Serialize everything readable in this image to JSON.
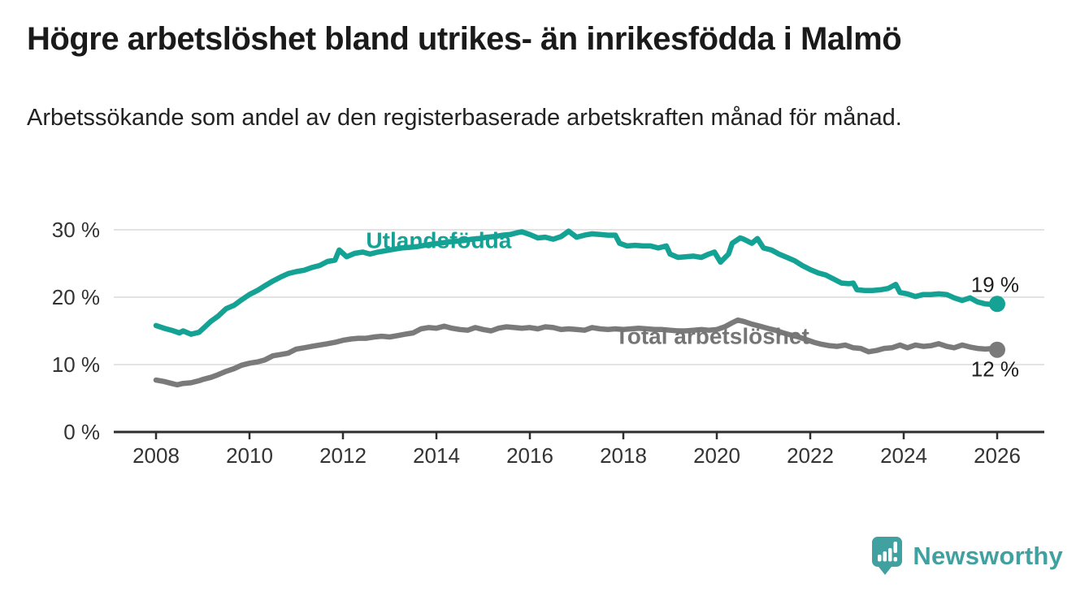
{
  "chart_data": {
    "type": "line",
    "title": "Högre arbetslöshet bland utrikes- än inrikesfödda i Malmö",
    "subtitle": "Arbetssökande som andel av den registerbaserade arbetskraften månad för månad.",
    "unit": "%",
    "grid": "horizontal",
    "legend": "inline-labels-on-lines",
    "x_axis": {
      "range": [
        2007.1,
        2027.0
      ],
      "ticks": [
        {
          "value": 2008,
          "label": "2008"
        },
        {
          "value": 2010,
          "label": "2010"
        },
        {
          "value": 2012,
          "label": "2012"
        },
        {
          "value": 2014,
          "label": "2014"
        },
        {
          "value": 2016,
          "label": "2016"
        },
        {
          "value": 2018,
          "label": "2018"
        },
        {
          "value": 2020,
          "label": "2020"
        },
        {
          "value": 2022,
          "label": "2022"
        },
        {
          "value": 2024,
          "label": "2024"
        },
        {
          "value": 2026,
          "label": "2026"
        }
      ]
    },
    "y_axis": {
      "range": [
        0,
        31
      ],
      "ticks": [
        {
          "value": 0,
          "label": "0 %"
        },
        {
          "value": 10,
          "label": "10 %"
        },
        {
          "value": 20,
          "label": "20 %"
        },
        {
          "value": 30,
          "label": "30 %"
        }
      ]
    },
    "series": [
      {
        "name": "Total arbetslöshet",
        "color": "#7a7a7a",
        "label_color": "#757575",
        "end_label": "12 %",
        "label_anchor": {
          "x": 2019.9,
          "y": 14.3
        },
        "points": [
          [
            2008.0,
            7.7
          ],
          [
            2008.17,
            7.5
          ],
          [
            2008.33,
            7.2
          ],
          [
            2008.45,
            7.0
          ],
          [
            2008.58,
            7.2
          ],
          [
            2008.75,
            7.3
          ],
          [
            2008.92,
            7.6
          ],
          [
            2009.0,
            7.8
          ],
          [
            2009.17,
            8.1
          ],
          [
            2009.33,
            8.5
          ],
          [
            2009.5,
            9.0
          ],
          [
            2009.67,
            9.4
          ],
          [
            2009.83,
            9.9
          ],
          [
            2010.0,
            10.2
          ],
          [
            2010.17,
            10.4
          ],
          [
            2010.33,
            10.7
          ],
          [
            2010.5,
            11.3
          ],
          [
            2010.67,
            11.5
          ],
          [
            2010.83,
            11.7
          ],
          [
            2011.0,
            12.3
          ],
          [
            2011.17,
            12.5
          ],
          [
            2011.33,
            12.7
          ],
          [
            2011.5,
            12.9
          ],
          [
            2011.67,
            13.1
          ],
          [
            2011.83,
            13.3
          ],
          [
            2012.0,
            13.6
          ],
          [
            2012.17,
            13.8
          ],
          [
            2012.33,
            13.9
          ],
          [
            2012.5,
            13.9
          ],
          [
            2012.67,
            14.1
          ],
          [
            2012.83,
            14.2
          ],
          [
            2013.0,
            14.1
          ],
          [
            2013.17,
            14.3
          ],
          [
            2013.33,
            14.5
          ],
          [
            2013.5,
            14.7
          ],
          [
            2013.67,
            15.3
          ],
          [
            2013.83,
            15.5
          ],
          [
            2014.0,
            15.4
          ],
          [
            2014.17,
            15.7
          ],
          [
            2014.33,
            15.4
          ],
          [
            2014.5,
            15.2
          ],
          [
            2014.67,
            15.1
          ],
          [
            2014.83,
            15.5
          ],
          [
            2015.0,
            15.2
          ],
          [
            2015.17,
            15.0
          ],
          [
            2015.33,
            15.4
          ],
          [
            2015.5,
            15.6
          ],
          [
            2015.67,
            15.5
          ],
          [
            2015.83,
            15.4
          ],
          [
            2016.0,
            15.5
          ],
          [
            2016.17,
            15.3
          ],
          [
            2016.33,
            15.6
          ],
          [
            2016.5,
            15.5
          ],
          [
            2016.67,
            15.2
          ],
          [
            2016.83,
            15.3
          ],
          [
            2017.0,
            15.2
          ],
          [
            2017.17,
            15.1
          ],
          [
            2017.33,
            15.5
          ],
          [
            2017.5,
            15.3
          ],
          [
            2017.67,
            15.2
          ],
          [
            2017.83,
            15.3
          ],
          [
            2018.0,
            15.2
          ],
          [
            2018.17,
            15.3
          ],
          [
            2018.33,
            15.4
          ],
          [
            2018.5,
            15.3
          ],
          [
            2018.67,
            15.2
          ],
          [
            2018.83,
            15.2
          ],
          [
            2019.0,
            15.1
          ],
          [
            2019.17,
            15.0
          ],
          [
            2019.33,
            15.0
          ],
          [
            2019.5,
            15.1
          ],
          [
            2019.67,
            15.2
          ],
          [
            2019.83,
            15.1
          ],
          [
            2020.0,
            15.2
          ],
          [
            2020.17,
            15.6
          ],
          [
            2020.33,
            16.2
          ],
          [
            2020.45,
            16.6
          ],
          [
            2020.58,
            16.4
          ],
          [
            2020.75,
            16.0
          ],
          [
            2020.92,
            15.7
          ],
          [
            2021.08,
            15.4
          ],
          [
            2021.25,
            15.1
          ],
          [
            2021.42,
            14.7
          ],
          [
            2021.58,
            14.4
          ],
          [
            2021.75,
            14.1
          ],
          [
            2021.92,
            13.7
          ],
          [
            2022.08,
            13.3
          ],
          [
            2022.25,
            13.0
          ],
          [
            2022.42,
            12.8
          ],
          [
            2022.58,
            12.7
          ],
          [
            2022.75,
            12.9
          ],
          [
            2022.92,
            12.5
          ],
          [
            2023.08,
            12.4
          ],
          [
            2023.25,
            11.9
          ],
          [
            2023.42,
            12.1
          ],
          [
            2023.58,
            12.4
          ],
          [
            2023.75,
            12.5
          ],
          [
            2023.92,
            12.9
          ],
          [
            2024.08,
            12.5
          ],
          [
            2024.25,
            12.9
          ],
          [
            2024.42,
            12.7
          ],
          [
            2024.58,
            12.8
          ],
          [
            2024.75,
            13.1
          ],
          [
            2024.92,
            12.7
          ],
          [
            2025.08,
            12.5
          ],
          [
            2025.25,
            12.9
          ],
          [
            2025.42,
            12.6
          ],
          [
            2025.58,
            12.4
          ],
          [
            2025.75,
            12.3
          ],
          [
            2025.92,
            12.4
          ],
          [
            2026.0,
            12.2
          ]
        ]
      },
      {
        "name": "Utlandsfödda",
        "color": "#14a295",
        "label_color": "#14a295",
        "end_label": "19 %",
        "label_anchor": {
          "x": 2014.05,
          "y": 28.5
        },
        "points": [
          [
            2008.0,
            15.8
          ],
          [
            2008.17,
            15.4
          ],
          [
            2008.33,
            15.1
          ],
          [
            2008.5,
            14.7
          ],
          [
            2008.58,
            15.0
          ],
          [
            2008.75,
            14.5
          ],
          [
            2008.92,
            14.8
          ],
          [
            2009.0,
            15.3
          ],
          [
            2009.17,
            16.4
          ],
          [
            2009.33,
            17.2
          ],
          [
            2009.5,
            18.3
          ],
          [
            2009.67,
            18.8
          ],
          [
            2009.83,
            19.6
          ],
          [
            2010.0,
            20.4
          ],
          [
            2010.17,
            21.0
          ],
          [
            2010.33,
            21.7
          ],
          [
            2010.5,
            22.4
          ],
          [
            2010.67,
            23.0
          ],
          [
            2010.83,
            23.5
          ],
          [
            2011.0,
            23.8
          ],
          [
            2011.17,
            24.0
          ],
          [
            2011.33,
            24.4
          ],
          [
            2011.5,
            24.7
          ],
          [
            2011.67,
            25.3
          ],
          [
            2011.83,
            25.5
          ],
          [
            2011.92,
            27.0
          ],
          [
            2012.08,
            26.0
          ],
          [
            2012.25,
            26.5
          ],
          [
            2012.42,
            26.7
          ],
          [
            2012.58,
            26.4
          ],
          [
            2012.75,
            26.7
          ],
          [
            2012.92,
            26.9
          ],
          [
            2013.08,
            27.1
          ],
          [
            2013.25,
            27.3
          ],
          [
            2013.42,
            27.4
          ],
          [
            2013.58,
            27.5
          ],
          [
            2013.75,
            27.7
          ],
          [
            2013.92,
            27.9
          ],
          [
            2014.08,
            28.0
          ],
          [
            2014.25,
            28.2
          ],
          [
            2014.42,
            28.3
          ],
          [
            2014.58,
            28.4
          ],
          [
            2014.75,
            28.6
          ],
          [
            2014.92,
            28.7
          ],
          [
            2015.08,
            28.9
          ],
          [
            2015.25,
            29.0
          ],
          [
            2015.42,
            29.2
          ],
          [
            2015.58,
            29.3
          ],
          [
            2015.75,
            29.6
          ],
          [
            2015.83,
            29.7
          ],
          [
            2016.0,
            29.3
          ],
          [
            2016.17,
            28.8
          ],
          [
            2016.33,
            28.9
          ],
          [
            2016.5,
            28.6
          ],
          [
            2016.67,
            29.0
          ],
          [
            2016.83,
            29.8
          ],
          [
            2017.0,
            28.9
          ],
          [
            2017.17,
            29.2
          ],
          [
            2017.33,
            29.4
          ],
          [
            2017.5,
            29.3
          ],
          [
            2017.67,
            29.2
          ],
          [
            2017.83,
            29.2
          ],
          [
            2017.92,
            28.0
          ],
          [
            2018.08,
            27.6
          ],
          [
            2018.25,
            27.7
          ],
          [
            2018.42,
            27.6
          ],
          [
            2018.58,
            27.6
          ],
          [
            2018.75,
            27.3
          ],
          [
            2018.92,
            27.6
          ],
          [
            2019.0,
            26.4
          ],
          [
            2019.17,
            25.9
          ],
          [
            2019.33,
            26.0
          ],
          [
            2019.5,
            26.1
          ],
          [
            2019.67,
            25.9
          ],
          [
            2019.83,
            26.4
          ],
          [
            2019.95,
            26.7
          ],
          [
            2020.08,
            25.2
          ],
          [
            2020.25,
            26.4
          ],
          [
            2020.33,
            28.0
          ],
          [
            2020.5,
            28.8
          ],
          [
            2020.58,
            28.6
          ],
          [
            2020.75,
            28.0
          ],
          [
            2020.87,
            28.7
          ],
          [
            2021.0,
            27.3
          ],
          [
            2021.17,
            27.0
          ],
          [
            2021.33,
            26.4
          ],
          [
            2021.5,
            25.9
          ],
          [
            2021.67,
            25.4
          ],
          [
            2021.83,
            24.7
          ],
          [
            2022.0,
            24.1
          ],
          [
            2022.17,
            23.6
          ],
          [
            2022.33,
            23.3
          ],
          [
            2022.5,
            22.7
          ],
          [
            2022.67,
            22.1
          ],
          [
            2022.83,
            22.0
          ],
          [
            2022.92,
            22.1
          ],
          [
            2023.0,
            21.1
          ],
          [
            2023.17,
            21.0
          ],
          [
            2023.33,
            21.0
          ],
          [
            2023.5,
            21.1
          ],
          [
            2023.67,
            21.3
          ],
          [
            2023.83,
            21.9
          ],
          [
            2023.92,
            20.7
          ],
          [
            2024.08,
            20.5
          ],
          [
            2024.25,
            20.1
          ],
          [
            2024.42,
            20.4
          ],
          [
            2024.58,
            20.4
          ],
          [
            2024.75,
            20.5
          ],
          [
            2024.92,
            20.4
          ],
          [
            2025.08,
            19.9
          ],
          [
            2025.25,
            19.5
          ],
          [
            2025.42,
            19.9
          ],
          [
            2025.58,
            19.3
          ],
          [
            2025.75,
            19.0
          ],
          [
            2025.92,
            18.9
          ],
          [
            2026.0,
            19.0
          ]
        ]
      }
    ]
  },
  "colors": {
    "accent_teal": "#14a295",
    "series_gray": "#7a7a7a",
    "grid": "#e3e3e3",
    "axis": "#2e2e2e",
    "tick_text": "#333333",
    "value_label_text": "#1d1d1d",
    "brand_teal": "#41a1a0",
    "title_text": "#1a1a1a"
  },
  "brand": {
    "name": "Newsworthy",
    "logo_icon": "speech-bubble-bar-chart-icon"
  }
}
